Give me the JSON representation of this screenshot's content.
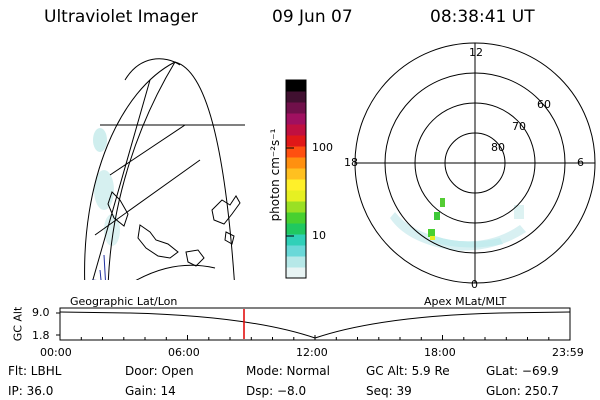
{
  "header": {
    "instrument": "Ultraviolet Imager",
    "date": "09 Jun 07",
    "time": "08:38:41 UT"
  },
  "colorbar": {
    "unit_label": "photon cm⁻²s⁻¹",
    "ticks": [
      "100",
      "10"
    ],
    "colors": [
      "#e8f4f4",
      "#b6e8e8",
      "#6ad8d8",
      "#30d0b8",
      "#20c860",
      "#48d030",
      "#9ae024",
      "#e6f022",
      "#fff02a",
      "#ffc020",
      "#ff9010",
      "#ff5010",
      "#e01818",
      "#c01040",
      "#a01060",
      "#70104a",
      "#401030",
      "#000000"
    ]
  },
  "polar": {
    "mlt_labels": [
      "12",
      "18",
      "6",
      "0"
    ],
    "lat_labels": [
      "60",
      "70",
      "80"
    ]
  },
  "orbit": {
    "left_label": "Geographic Lat/Lon",
    "right_label": "Apex MLat/MLT",
    "y_label": "GC Alt",
    "y_ticks": [
      "9.0",
      "1.8"
    ],
    "time_ticks": [
      "00:00",
      "06:00",
      "12:00",
      "18:00",
      "23:59"
    ],
    "marker_color": "#e00000"
  },
  "info": {
    "filter": "Flt: LBHL",
    "door": "Door: Open",
    "mode": "Mode: Normal",
    "gc_alt": "GC Alt: 5.9 Re",
    "glat": "GLat: −69.9",
    "ip": "IP: 36.0",
    "gain": "Gain: 14",
    "dsp": "Dsp:   −8.0",
    "seq": "Seq: 39",
    "glon": "GLon: 250.7"
  }
}
